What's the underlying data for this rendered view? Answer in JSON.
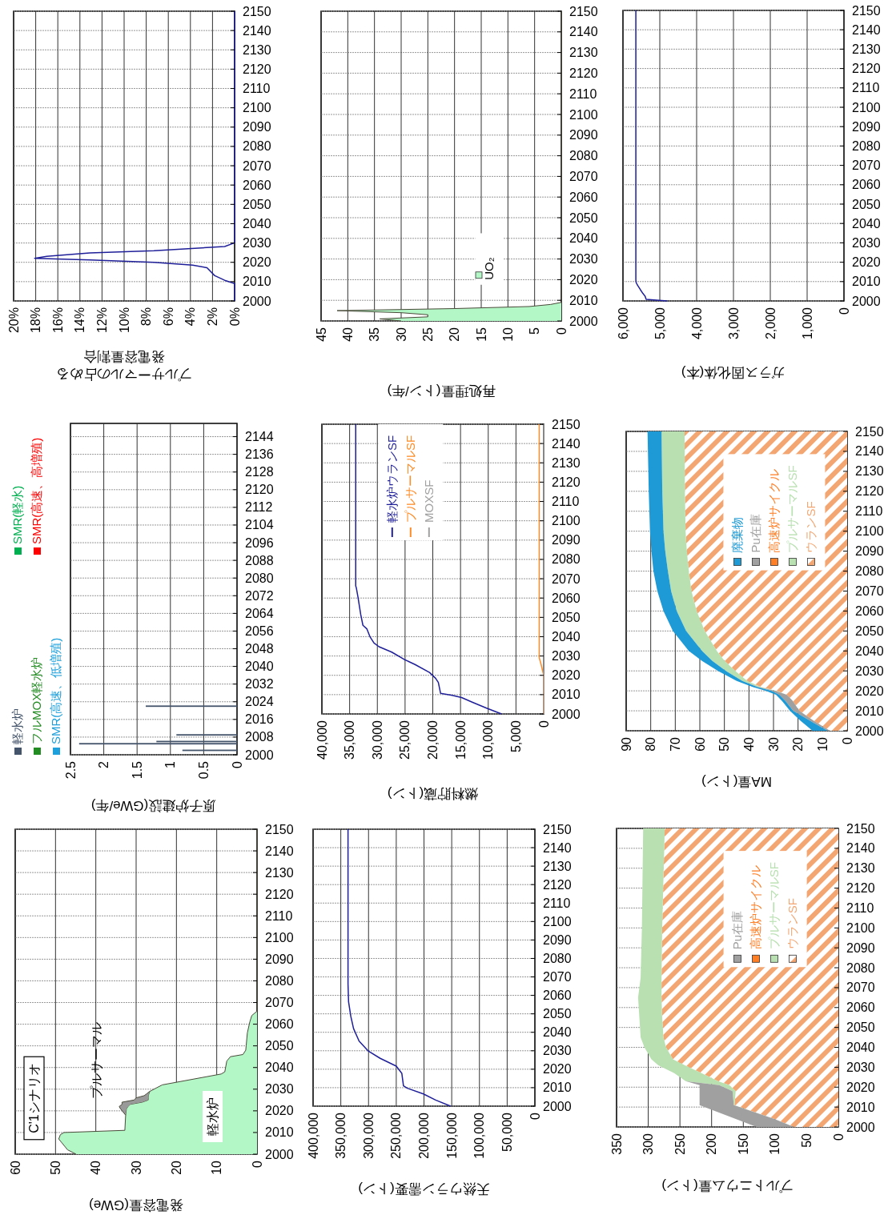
{
  "chart_data": [
    {
      "type": "line",
      "orientation": "horizontal",
      "xlabel": "プルサーマルの占める発電容量割合",
      "ylim": [
        2000,
        2150
      ],
      "yticks": [
        2000,
        2010,
        2020,
        2030,
        2040,
        2050,
        2060,
        2070,
        2080,
        2090,
        2100,
        2110,
        2120,
        2130,
        2140,
        2150
      ],
      "xlim": [
        20,
        0
      ],
      "xticks": [
        {
          "value": 20,
          "label": "20%"
        },
        {
          "value": 18,
          "label": "18%"
        },
        {
          "value": 16,
          "label": "16%"
        },
        {
          "value": 14,
          "label": "14%"
        },
        {
          "value": 12,
          "label": "12%"
        },
        {
          "value": 10,
          "label": "10%"
        },
        {
          "value": 8,
          "label": "8%"
        },
        {
          "value": 6,
          "label": "6%"
        },
        {
          "value": 4,
          "label": "4%"
        },
        {
          "value": 2,
          "label": "2%"
        },
        {
          "value": 0,
          "label": "0%"
        }
      ],
      "grid": true,
      "series": [
        {
          "color": "#1f1f99",
          "x": [
            2000,
            2009,
            2010.7,
            2013.1,
            2017.2,
            2018.5,
            2020,
            2021.2,
            2022.1,
            2023.1,
            2024.9,
            2026,
            2028.2,
            2030.1,
            2150
          ],
          "values": [
            0,
            0,
            0.9,
            1.8,
            2.5,
            3.8,
            7.3,
            13.1,
            18.1,
            17,
            13.1,
            7.3,
            0.9,
            0,
            0
          ]
        }
      ]
    },
    {
      "type": "area",
      "orientation": "horizontal",
      "xlabel": "再処理量(トン/年)",
      "ylim": [
        2000,
        2150
      ],
      "yticks": [
        2000,
        2010,
        2020,
        2030,
        2040,
        2050,
        2060,
        2070,
        2080,
        2090,
        2100,
        2110,
        2120,
        2130,
        2140,
        2150
      ],
      "xlim": [
        45,
        0
      ],
      "xticks": [
        45,
        40,
        35,
        30,
        25,
        20,
        15,
        10,
        5,
        0
      ],
      "grid": true,
      "legend": "bottom right",
      "series": [
        {
          "name": "UO₂",
          "color": "#b3f7c6",
          "x": [
            2000,
            2001,
            2002,
            2003,
            2004,
            2005,
            2006,
            2007,
            2008,
            2009,
            2150
          ],
          "values": [
            30,
            34,
            25,
            25,
            30,
            42,
            20,
            6,
            2,
            0,
            0
          ]
        }
      ]
    },
    {
      "type": "line",
      "orientation": "horizontal",
      "xlabel": "ガラス固化体(本)",
      "ylim": [
        2000,
        2150
      ],
      "yticks": [
        2000,
        2010,
        2020,
        2030,
        2040,
        2050,
        2060,
        2070,
        2080,
        2090,
        2100,
        2110,
        2120,
        2130,
        2140,
        2150
      ],
      "xlim": [
        6000,
        0
      ],
      "xticks": [
        {
          "value": 6000,
          "label": "6,000"
        },
        {
          "value": 5000,
          "label": "5,000"
        },
        {
          "value": 4000,
          "label": "4,000"
        },
        {
          "value": 3000,
          "label": "3,000"
        },
        {
          "value": 2000,
          "label": "2,000"
        },
        {
          "value": 1000,
          "label": "1,000"
        },
        0
      ],
      "grid": true,
      "series": [
        {
          "color": "#1f1f99",
          "x": [
            2000,
            2000.8,
            2002.5,
            2003.9,
            2005.9,
            2008,
            2009.4,
            2010.8,
            2150
          ],
          "values": [
            4800,
            5370,
            5400,
            5460,
            5530,
            5600,
            5640,
            5650,
            5650
          ]
        }
      ]
    },
    {
      "type": "bar",
      "orientation": "horizontal",
      "stacked": true,
      "xlabel": "原子炉建設(GWe/年)",
      "ylim": [
        2000,
        2150
      ],
      "yticks": [
        2000,
        2008,
        2016,
        2024,
        2032,
        2040,
        2048,
        2056,
        2064,
        2072,
        2080,
        2088,
        2096,
        2104,
        2112,
        2120,
        2128,
        2136,
        2144
      ],
      "xlim": [
        2.5,
        0
      ],
      "xticks": [
        2.5,
        2,
        1.5,
        1,
        0.5,
        0
      ],
      "grid": true,
      "legend": "left",
      "x": [
        2002,
        2005,
        2006,
        2009,
        2022
      ],
      "series": [
        {
          "name": "軽水炉",
          "color": "#44546a",
          "values": [
            0.82,
            2.37,
            1.21,
            0.91,
            1.37
          ]
        },
        {
          "name": "フルMOX軽水炉",
          "color": "#238c23",
          "values": [
            null,
            null,
            null,
            null,
            null
          ]
        },
        {
          "name": "SMR(高速、低増殖)",
          "color": "#1ea0dc",
          "values": [
            null,
            null,
            null,
            null,
            null
          ]
        },
        {
          "name": "SMR(軽水)",
          "color": "#00b050",
          "values": [
            null,
            null,
            null,
            null,
            null
          ]
        },
        {
          "name": "SMR(高速、高増殖)",
          "color": "#ff0000",
          "values": [
            null,
            null,
            null,
            null,
            null
          ]
        }
      ]
    },
    {
      "type": "line",
      "orientation": "horizontal",
      "xlabel": "燃料貯蔵(トン)",
      "ylim": [
        2000,
        2150
      ],
      "yticks": [
        2000,
        2010,
        2020,
        2030,
        2040,
        2050,
        2060,
        2070,
        2080,
        2090,
        2100,
        2110,
        2120,
        2130,
        2140,
        2150
      ],
      "xlim": [
        40000,
        0
      ],
      "xticks": [
        {
          "value": 40000,
          "label": "40,000"
        },
        {
          "value": 35000,
          "label": "35,000"
        },
        {
          "value": 30000,
          "label": "30,000"
        },
        {
          "value": 25000,
          "label": "25,000"
        },
        {
          "value": 20000,
          "label": "20,000"
        },
        {
          "value": 15000,
          "label": "15,000"
        },
        {
          "value": 10000,
          "label": "10,000"
        },
        {
          "value": 5000,
          "label": "5,000"
        },
        0
      ],
      "grid": true,
      "legend": "top left",
      "series": [
        {
          "name": "軽水炉ウランSF",
          "color": "#1f1f99",
          "x": [
            2000,
            2003,
            2006.1,
            2008.5,
            2009.6,
            2010.7,
            2016.3,
            2018.5,
            2021.5,
            2025.6,
            2028.3,
            2032,
            2034.8,
            2036.7,
            2039.8,
            2044.1,
            2045.9,
            2051.5,
            2060.7,
            2065.4,
            2066.3,
            2150
          ],
          "values": [
            7600,
            10300,
            12900,
            14800,
            16500,
            18600,
            19000,
            19500,
            20600,
            23200,
            25200,
            27400,
            29700,
            30600,
            31300,
            31900,
            32600,
            33000,
            33500,
            33800,
            33900,
            33900
          ]
        },
        {
          "name": "プルサーマルSF",
          "color": "#ff8c28",
          "x": [
            2000,
            2020,
            2026,
            2029,
            2150
          ],
          "values": [
            0,
            0,
            500,
            800,
            800
          ]
        },
        {
          "name": "MOXSF",
          "color": "#a0a0a0",
          "x": [
            2000,
            2150
          ],
          "values": [
            0,
            0
          ]
        }
      ]
    },
    {
      "type": "area",
      "orientation": "horizontal",
      "stacked": true,
      "xlabel": "MA量(トン)",
      "ylim": [
        2000,
        2150
      ],
      "yticks": [
        2000,
        2010,
        2020,
        2030,
        2040,
        2050,
        2060,
        2070,
        2080,
        2090,
        2100,
        2110,
        2120,
        2130,
        2140,
        2150
      ],
      "xlim": [
        90,
        0
      ],
      "xticks": [
        90,
        80,
        70,
        60,
        50,
        40,
        30,
        20,
        10,
        0
      ],
      "grid": true,
      "legend": "top right",
      "x": [
        2000,
        2005,
        2010,
        2015,
        2018,
        2020,
        2022,
        2025,
        2030,
        2035,
        2040,
        2050,
        2060,
        2070,
        2080,
        2090,
        2100,
        2120,
        2150
      ],
      "series": [
        {
          "name": "ウランSF",
          "color": "#f4a672",
          "values": [
            7,
            13.6,
            19.5,
            22.2,
            24.6,
            28.7,
            35.2,
            40.7,
            45.6,
            49.9,
            53.1,
            58,
            61.3,
            63.4,
            64.5,
            65.3,
            65.8,
            66.1,
            66.2
          ]
        },
        {
          "name": "プルサーマルSF",
          "color": "#b8e0b0",
          "values": [
            null,
            null,
            null,
            null,
            0,
            0.5,
            1,
            2,
            3.8,
            5,
            6,
            7.6,
            8.1,
            8.3,
            8.5,
            8.8,
            9,
            9.2,
            9.4
          ]
        },
        {
          "name": "高速炉サイクル",
          "color": "#ff7f27",
          "values": [
            null,
            null,
            null,
            null,
            null,
            null,
            null,
            null,
            null,
            null,
            null,
            null,
            null,
            null,
            null,
            null,
            null,
            null,
            null
          ]
        },
        {
          "name": "Pu在庫",
          "color": "#a0a0a0",
          "values": [
            1,
            1.5,
            2.5,
            3,
            3,
            1.5,
            0.5,
            0,
            null,
            null,
            null,
            null,
            null,
            null,
            null,
            null,
            null,
            null,
            null
          ]
        },
        {
          "name": "廃棄物",
          "color": "#1e9ad6",
          "values": [
            6.1,
            3.9,
            1.3,
            1.4,
            1.4,
            2.3,
            1.8,
            2.3,
            3.2,
            4.2,
            5.4,
            5.4,
            5.4,
            5.6,
            5.9,
            5.6,
            5.5,
            5.5,
            5.7
          ]
        }
      ]
    },
    {
      "type": "area",
      "orientation": "horizontal",
      "stacked": true,
      "xlabel": "発電容量(GWe)",
      "ylim": [
        2000,
        2150
      ],
      "yticks": [
        2000,
        2010,
        2020,
        2030,
        2040,
        2050,
        2060,
        2070,
        2080,
        2090,
        2100,
        2110,
        2120,
        2130,
        2140,
        2150
      ],
      "xlim": [
        60,
        0
      ],
      "xticks": [
        60,
        50,
        40,
        30,
        20,
        10,
        0
      ],
      "grid": true,
      "x": [
        2000,
        2002,
        2007,
        2009,
        2010,
        2011,
        2018,
        2021,
        2022,
        2023,
        2024,
        2025,
        2026,
        2027,
        2028,
        2029,
        2032,
        2037,
        2038,
        2043,
        2045,
        2046,
        2048,
        2050,
        2056,
        2061,
        2064,
        2066,
        2150
      ],
      "series": [
        {
          "color": "#b3f7c6",
          "values": [
            44.9,
            47,
            49.2,
            48.8,
            47.9,
            32.8,
            32.6,
            32.4,
            32,
            31.5,
            28.5,
            27,
            27,
            27,
            26.8,
            26.6,
            23.5,
            8.9,
            8,
            7.5,
            6.6,
            3.5,
            2.8,
            2.7,
            2.4,
            1.8,
            1.3,
            0,
            0
          ]
        },
        {
          "color": "#999999",
          "values": [
            null,
            null,
            null,
            null,
            null,
            null,
            0,
            1.5,
            2.2,
            2,
            5,
            3.5,
            3,
            1,
            0.5,
            0,
            null,
            null,
            null,
            null,
            null,
            null,
            null,
            null,
            null,
            null,
            null,
            null,
            null
          ]
        }
      ],
      "annotations": [
        "C'1シナリオ",
        "プルサーマル",
        "軽水炉"
      ]
    },
    {
      "type": "line",
      "orientation": "horizontal",
      "xlabel": "天然ウラン需要(トン)",
      "ylim": [
        2000,
        2150
      ],
      "yticks": [
        2000,
        2010,
        2020,
        2030,
        2040,
        2050,
        2060,
        2070,
        2080,
        2090,
        2100,
        2110,
        2120,
        2130,
        2140,
        2150
      ],
      "xlim": [
        400000,
        0
      ],
      "xticks": [
        {
          "value": 400000,
          "label": "400,000"
        },
        {
          "value": 350000,
          "label": "350,000"
        },
        {
          "value": 300000,
          "label": "300,000"
        },
        {
          "value": 250000,
          "label": "250,000"
        },
        {
          "value": 200000,
          "label": "200,000"
        },
        {
          "value": 150000,
          "label": "150,000"
        },
        {
          "value": 100000,
          "label": "100,000"
        },
        {
          "value": 50000,
          "label": "50,000"
        },
        0
      ],
      "grid": true,
      "series": [
        {
          "color": "#1f1f99",
          "x": [
            2000,
            2003.3,
            2006.6,
            2009.7,
            2011,
            2017.8,
            2021.7,
            2025.9,
            2030,
            2035.2,
            2042,
            2048.7,
            2056.5,
            2066.2,
            2150
          ],
          "values": [
            152000,
            179000,
            201000,
            230000,
            237000,
            240000,
            250000,
            279000,
            301000,
            317000,
            327000,
            332000,
            336000,
            337000,
            337000
          ]
        }
      ]
    },
    {
      "type": "area",
      "orientation": "horizontal",
      "stacked": true,
      "xlabel": "プルトニウム量(トン)",
      "ylim": [
        2000,
        2150
      ],
      "yticks": [
        2000,
        2010,
        2020,
        2030,
        2040,
        2050,
        2060,
        2070,
        2080,
        2090,
        2100,
        2110,
        2120,
        2130,
        2140,
        2150
      ],
      "xlim": [
        350,
        0
      ],
      "xticks": [
        350,
        300,
        250,
        200,
        150,
        100,
        50,
        0
      ],
      "grid": true,
      "legend": "top right",
      "x": [
        2000,
        2004,
        2011,
        2018,
        2021,
        2023,
        2027,
        2031,
        2034,
        2040,
        2045,
        2055,
        2065,
        2075,
        2100,
        2150
      ],
      "series": [
        {
          "name": "ウランSF",
          "color": "#f4a672",
          "values": [
            70,
            101,
            164,
            162,
            172,
            190,
            216,
            242,
            261,
            272,
            276,
            278,
            279,
            279,
            278,
            274
          ]
        },
        {
          "name": "プルサーマルSF",
          "color": "#b8e0b0",
          "values": [
            null,
            0,
            1,
            5,
            16,
            51,
            43,
            42,
            34,
            34,
            36,
            36,
            37,
            33,
            32,
            34
          ]
        },
        {
          "name": "高速炉サイクル",
          "color": "#ff7f27",
          "values": [
            null,
            null,
            null,
            null,
            null,
            null,
            null,
            null,
            null,
            null,
            null,
            null,
            null,
            null,
            null,
            null
          ]
        },
        {
          "name": "Pu在庫",
          "color": "#a0a0a0",
          "values": [
            59,
            61,
            54,
            52,
            31,
            0,
            null,
            null,
            null,
            null,
            null,
            null,
            null,
            null,
            null,
            null
          ]
        }
      ]
    }
  ]
}
